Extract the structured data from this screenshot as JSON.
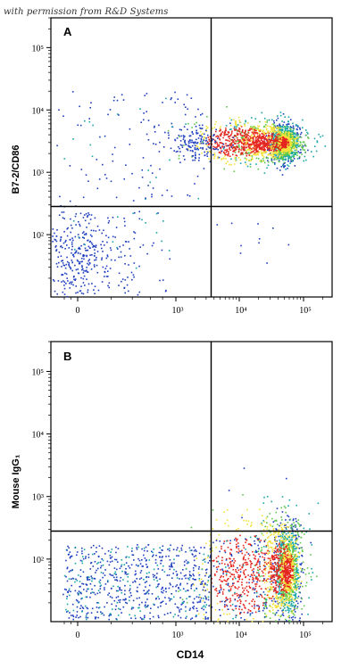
{
  "credit": "with permission from R&D Systems",
  "colors": {
    "frame": "#000000",
    "density_low": "#1f3fbf",
    "density_mid": "#19a6a6",
    "density_high_1": "#5cc84a",
    "density_high_2": "#f2e23a",
    "density_peak": "#e5261f"
  },
  "chart_data": [
    {
      "type": "scatter",
      "panel_label": "A",
      "xlabel": "",
      "ylabel": "B7-2/CD86",
      "x_scale": "biexponential",
      "y_scale": "log",
      "x_ticks": [
        "0",
        "10³",
        "10⁴",
        "10⁵"
      ],
      "y_ticks": [
        "10²",
        "10³",
        "10⁴",
        "10⁵"
      ],
      "ylim": [
        10,
        300000
      ],
      "quadrant_gate": {
        "x": 3500,
        "y": 300
      },
      "populations": [
        {
          "label": "CD14+ CD86+ (main)",
          "x_center": 50000,
          "y_center": 3000,
          "density": "high"
        },
        {
          "label": "CD14+ CD86+ (spread)",
          "x_center": 10000,
          "y_center": 3200,
          "density": "medium"
        },
        {
          "label": "CD14- CD86-",
          "x_center": 0,
          "y_center": 50,
          "density": "low"
        },
        {
          "label": "CD14- CD86+",
          "x_center": 200,
          "y_center": 1500,
          "density": "sparse"
        }
      ]
    },
    {
      "type": "scatter",
      "panel_label": "B",
      "xlabel": "CD14",
      "ylabel": "Mouse IgG₁",
      "x_scale": "biexponential",
      "y_scale": "log",
      "x_ticks": [
        "0",
        "10³",
        "10⁴",
        "10⁵"
      ],
      "y_ticks": [
        "10²",
        "10³",
        "10⁴",
        "10⁵"
      ],
      "ylim": [
        10,
        300000
      ],
      "quadrant_gate": {
        "x": 3500,
        "y": 300
      },
      "populations": [
        {
          "label": "CD14+ isotype (main)",
          "x_center": 50000,
          "y_center": 70,
          "density": "high"
        },
        {
          "label": "CD14+ isotype (spread)",
          "x_center": 12000,
          "y_center": 60,
          "density": "medium"
        },
        {
          "label": "CD14- isotype",
          "x_center": 200,
          "y_center": 50,
          "density": "low"
        }
      ]
    }
  ]
}
